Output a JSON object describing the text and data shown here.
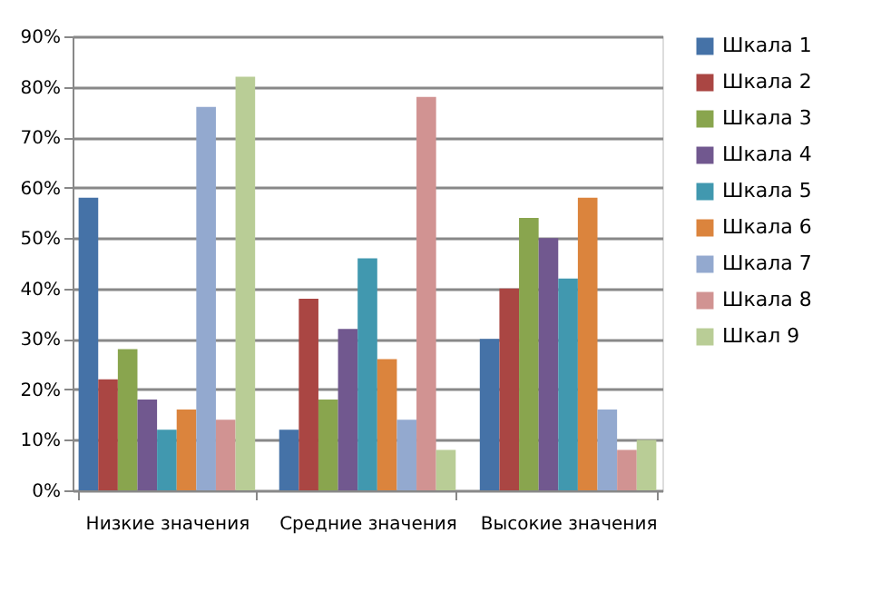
{
  "chart_data": {
    "type": "bar",
    "categories": [
      "Низкие значения",
      "Средние значения",
      "Высокие значения"
    ],
    "series": [
      {
        "name": "Шкала 1",
        "color": "#4572a7",
        "values": [
          58,
          12,
          30
        ]
      },
      {
        "name": "Шкала 2",
        "color": "#aa4643",
        "values": [
          22,
          38,
          40
        ]
      },
      {
        "name": "Шкала 3",
        "color": "#89a54e",
        "values": [
          28,
          18,
          54
        ]
      },
      {
        "name": "Шкала 4",
        "color": "#71588f",
        "values": [
          18,
          32,
          50
        ]
      },
      {
        "name": "Шкала 5",
        "color": "#4198af",
        "values": [
          12,
          46,
          42
        ]
      },
      {
        "name": "Шкала 6",
        "color": "#db843d",
        "values": [
          16,
          26,
          58
        ]
      },
      {
        "name": "Шкала 7",
        "color": "#93a9cf",
        "values": [
          76,
          14,
          16
        ]
      },
      {
        "name": "Шкала 8",
        "color": "#d19392",
        "values": [
          14,
          78,
          8
        ]
      },
      {
        "name": "Шкал 9",
        "color": "#b9cd96",
        "values": [
          82,
          8,
          10
        ]
      }
    ],
    "ylim": [
      0,
      90
    ],
    "yticks": [
      {
        "value": 0,
        "label": "0%"
      },
      {
        "value": 10,
        "label": "10%"
      },
      {
        "value": 20,
        "label": "20%"
      },
      {
        "value": 30,
        "label": "30%"
      },
      {
        "value": 40,
        "label": "40%"
      },
      {
        "value": 50,
        "label": "50%"
      },
      {
        "value": 60,
        "label": "60%"
      },
      {
        "value": 70,
        "label": "70%"
      },
      {
        "value": 80,
        "label": "80%"
      },
      {
        "value": 90,
        "label": "90%"
      }
    ],
    "grid": "y",
    "legend": "right"
  }
}
